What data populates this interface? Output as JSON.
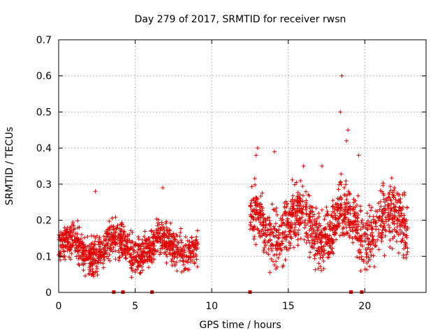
{
  "chart_data": {
    "type": "scatter",
    "title": "Day 279 of 2017, SRMTID for receiver rwsn",
    "xlabel": "GPS time / hours",
    "ylabel": "SRMTID / TECUs",
    "xlim": [
      0,
      24
    ],
    "ylim": [
      0,
      0.7
    ],
    "xticks": [
      "0",
      "5",
      "10",
      "15",
      "20"
    ],
    "xtick_values": [
      0,
      5,
      10,
      15,
      20
    ],
    "yticks": [
      "0",
      "0.1",
      "0.2",
      "0.3",
      "0.4",
      "0.5",
      "0.6",
      "0.7"
    ],
    "ytick_values": [
      0,
      0.1,
      0.2,
      0.3,
      0.4,
      0.5,
      0.6,
      0.7
    ],
    "grid": true,
    "marker": "+",
    "color": "#e00000",
    "segments": [
      {
        "x_start": 0.0,
        "x_end": 9.1,
        "typical_range": [
          0.05,
          0.2
        ]
      },
      {
        "x_start": 12.5,
        "x_end": 22.8,
        "typical_range": [
          0.07,
          0.3
        ]
      }
    ],
    "notable_points": [
      {
        "x": 18.5,
        "y": 0.6
      },
      {
        "x": 18.4,
        "y": 0.5
      },
      {
        "x": 18.9,
        "y": 0.45
      },
      {
        "x": 18.8,
        "y": 0.42
      },
      {
        "x": 13.0,
        "y": 0.4
      },
      {
        "x": 12.9,
        "y": 0.38
      },
      {
        "x": 14.1,
        "y": 0.39
      },
      {
        "x": 16.0,
        "y": 0.35
      },
      {
        "x": 17.2,
        "y": 0.35
      },
      {
        "x": 19.6,
        "y": 0.38
      },
      {
        "x": 6.8,
        "y": 0.29
      },
      {
        "x": 2.4,
        "y": 0.28
      },
      {
        "x": 22.6,
        "y": 0.27
      }
    ],
    "baseline_markers_x": [
      3.6,
      4.2,
      6.1,
      12.5,
      19.1,
      19.8
    ]
  }
}
